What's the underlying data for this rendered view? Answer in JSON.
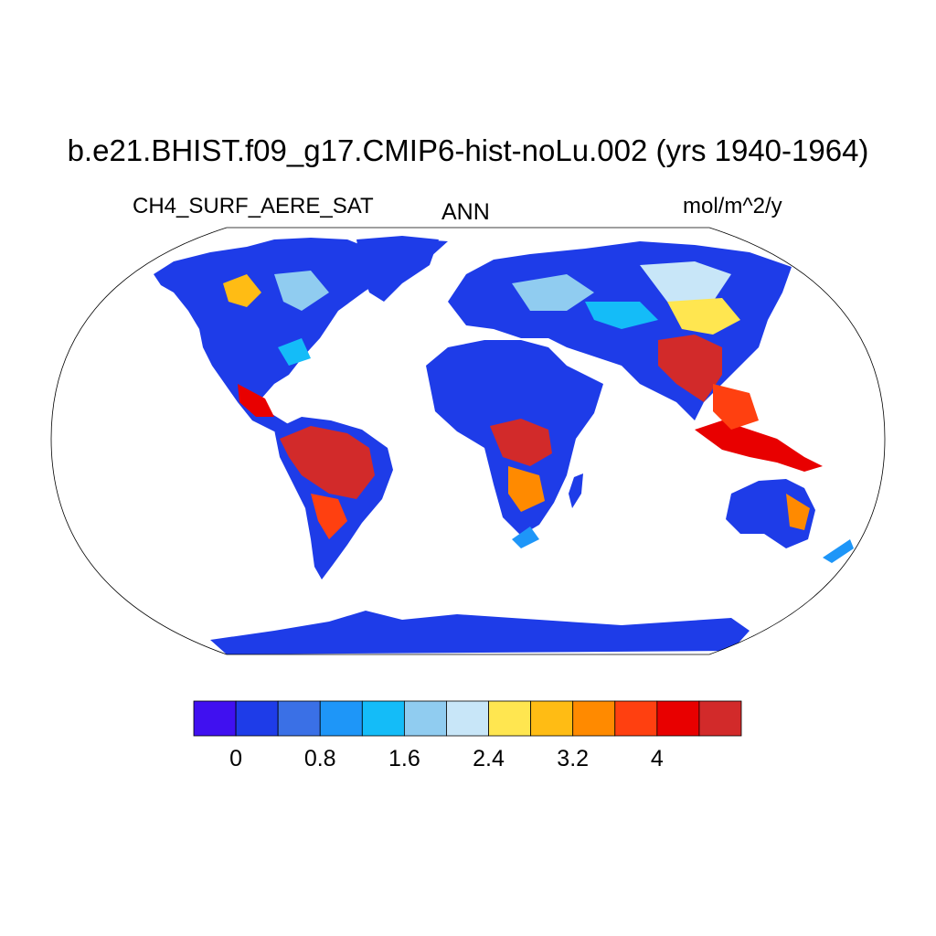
{
  "figure": {
    "title": "b.e21.BHIST.f09_g17.CMIP6-hist-noLu.002 (yrs 1940-1964)",
    "variable": "CH4_SURF_AERE_SAT",
    "season": "ANN",
    "units": "mol/m^2/y"
  },
  "map": {
    "projection": "robinson",
    "field_style": "gridded raster"
  },
  "colorbar": {
    "colors": [
      "#4010f0",
      "#1e3ce8",
      "#3a70e6",
      "#1e96f8",
      "#14bcf8",
      "#90ccf0",
      "#c8e6f8",
      "#ffe650",
      "#ffbc14",
      "#ff8a00",
      "#ff4010",
      "#e80000",
      "#d22a2a"
    ],
    "levels": [
      0,
      0.4,
      0.8,
      1.2,
      1.6,
      2.0,
      2.4,
      2.8,
      3.2,
      3.6,
      4.0,
      4.4
    ],
    "tick_labels": [
      {
        "value": 0,
        "text": "0"
      },
      {
        "value": 0.8,
        "text": "0.8"
      },
      {
        "value": 1.6,
        "text": "1.6"
      },
      {
        "value": 2.4,
        "text": "2.4"
      },
      {
        "value": 3.2,
        "text": "3.2"
      },
      {
        "value": 4.0,
        "text": "4"
      }
    ]
  }
}
